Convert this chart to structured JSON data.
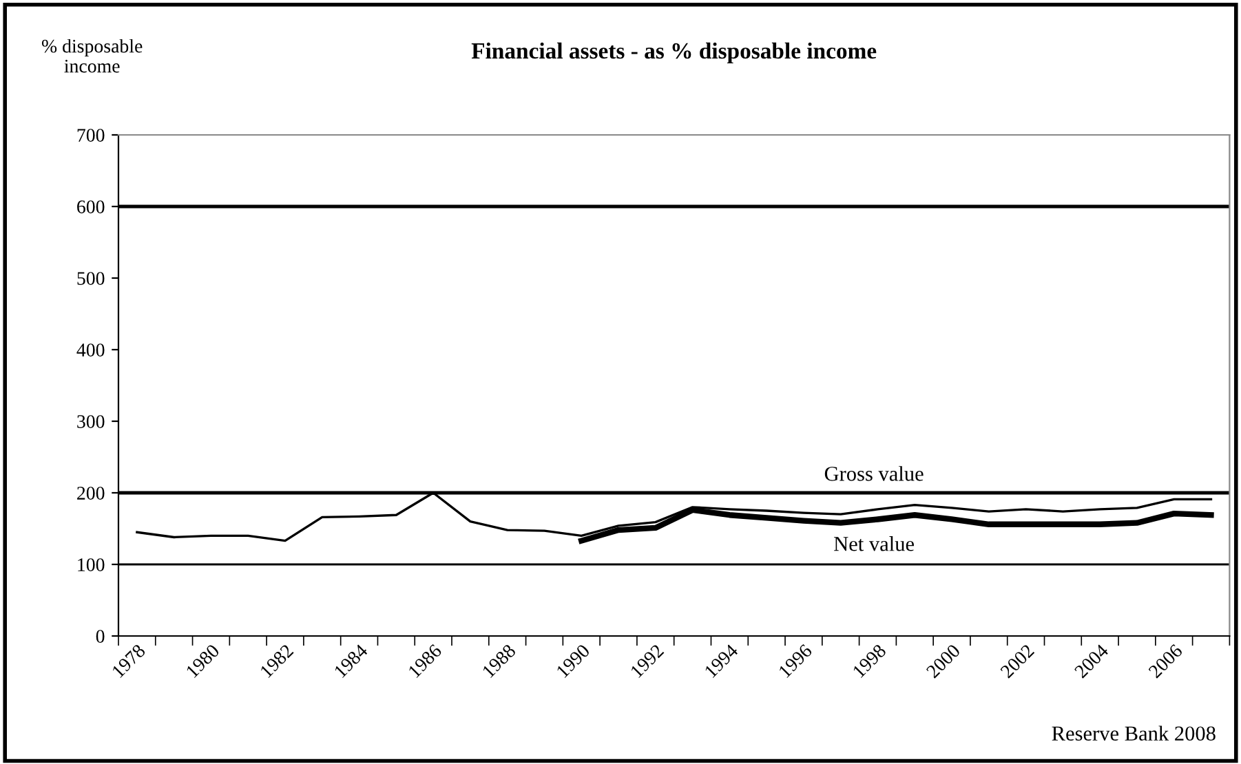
{
  "chart_data": {
    "type": "line",
    "title": "Financial assets - as % disposable income",
    "ylabel": "% disposable\nincome",
    "categories": [
      "1978",
      null,
      "1980",
      null,
      "1982",
      null,
      "1984",
      null,
      "1986",
      null,
      "1988",
      null,
      "1990",
      null,
      "1992",
      null,
      "1994",
      null,
      "1996",
      null,
      "1998",
      null,
      "2000",
      null,
      "2002",
      null,
      "2004",
      null,
      "2006",
      null
    ],
    "series": [
      {
        "color": "#000000",
        "values": [
          145,
          138,
          140,
          140,
          133,
          166,
          167,
          169,
          200,
          160,
          148,
          147,
          140,
          154,
          159,
          180,
          177,
          175,
          172,
          170,
          177,
          183,
          179,
          174,
          177,
          174,
          177,
          179,
          191,
          191
        ]
      },
      {
        "color": "#000000",
        "values": [
          null,
          null,
          null,
          null,
          null,
          null,
          null,
          null,
          null,
          null,
          null,
          null,
          133,
          148,
          151,
          176,
          169,
          165,
          161,
          158,
          163,
          169,
          163,
          156,
          156,
          156,
          156,
          158,
          171,
          169
        ]
      }
    ],
    "ylim": [
      0,
      700
    ],
    "yticks": [
      0,
      100,
      200,
      300,
      400,
      500,
      600,
      700
    ],
    "ref_lines": [
      {
        "axis": "y",
        "value": 100
      },
      {
        "axis": "y",
        "value": 200
      },
      {
        "axis": "y",
        "value": 600
      }
    ],
    "annotations": [
      "Gross value",
      "Net value",
      "Reserve Bank 2008"
    ],
    "grid": false,
    "legend": false,
    "marker": "none",
    "line_style": "solid"
  }
}
